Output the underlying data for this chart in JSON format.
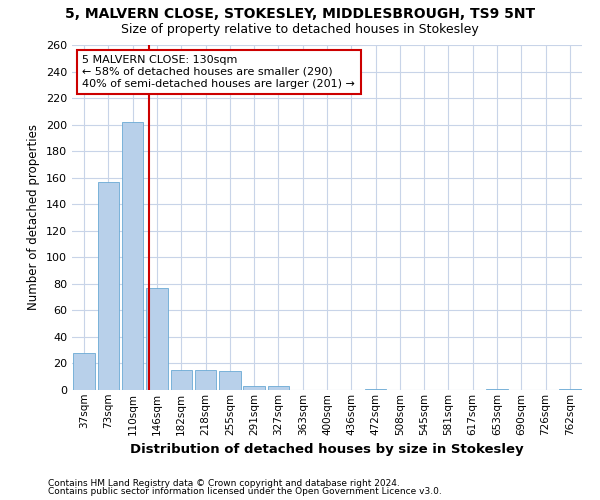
{
  "title": "5, MALVERN CLOSE, STOKESLEY, MIDDLESBROUGH, TS9 5NT",
  "subtitle": "Size of property relative to detached houses in Stokesley",
  "xlabel": "Distribution of detached houses by size in Stokesley",
  "ylabel": "Number of detached properties",
  "categories": [
    "37sqm",
    "73sqm",
    "110sqm",
    "146sqm",
    "182sqm",
    "218sqm",
    "255sqm",
    "291sqm",
    "327sqm",
    "363sqm",
    "400sqm",
    "436sqm",
    "472sqm",
    "508sqm",
    "545sqm",
    "581sqm",
    "617sqm",
    "653sqm",
    "690sqm",
    "726sqm",
    "762sqm"
  ],
  "values": [
    28,
    157,
    202,
    77,
    15,
    15,
    14,
    3,
    3,
    0,
    0,
    0,
    1,
    0,
    0,
    0,
    0,
    1,
    0,
    0,
    1
  ],
  "bar_color": "#b8d0ea",
  "bar_edgecolor": "#6aaad4",
  "grid_color": "#c8d4e8",
  "bg_color": "#ffffff",
  "plot_bg_color": "#ffffff",
  "vline_x": 2.67,
  "vline_color": "#cc0000",
  "annotation_text": "5 MALVERN CLOSE: 130sqm\n← 58% of detached houses are smaller (290)\n40% of semi-detached houses are larger (201) →",
  "annotation_box_color": "#ffffff",
  "annotation_box_edgecolor": "#cc0000",
  "ylim": [
    0,
    260
  ],
  "yticks": [
    0,
    20,
    40,
    60,
    80,
    100,
    120,
    140,
    160,
    180,
    200,
    220,
    240,
    260
  ],
  "footnote1": "Contains HM Land Registry data © Crown copyright and database right 2024.",
  "footnote2": "Contains public sector information licensed under the Open Government Licence v3.0."
}
